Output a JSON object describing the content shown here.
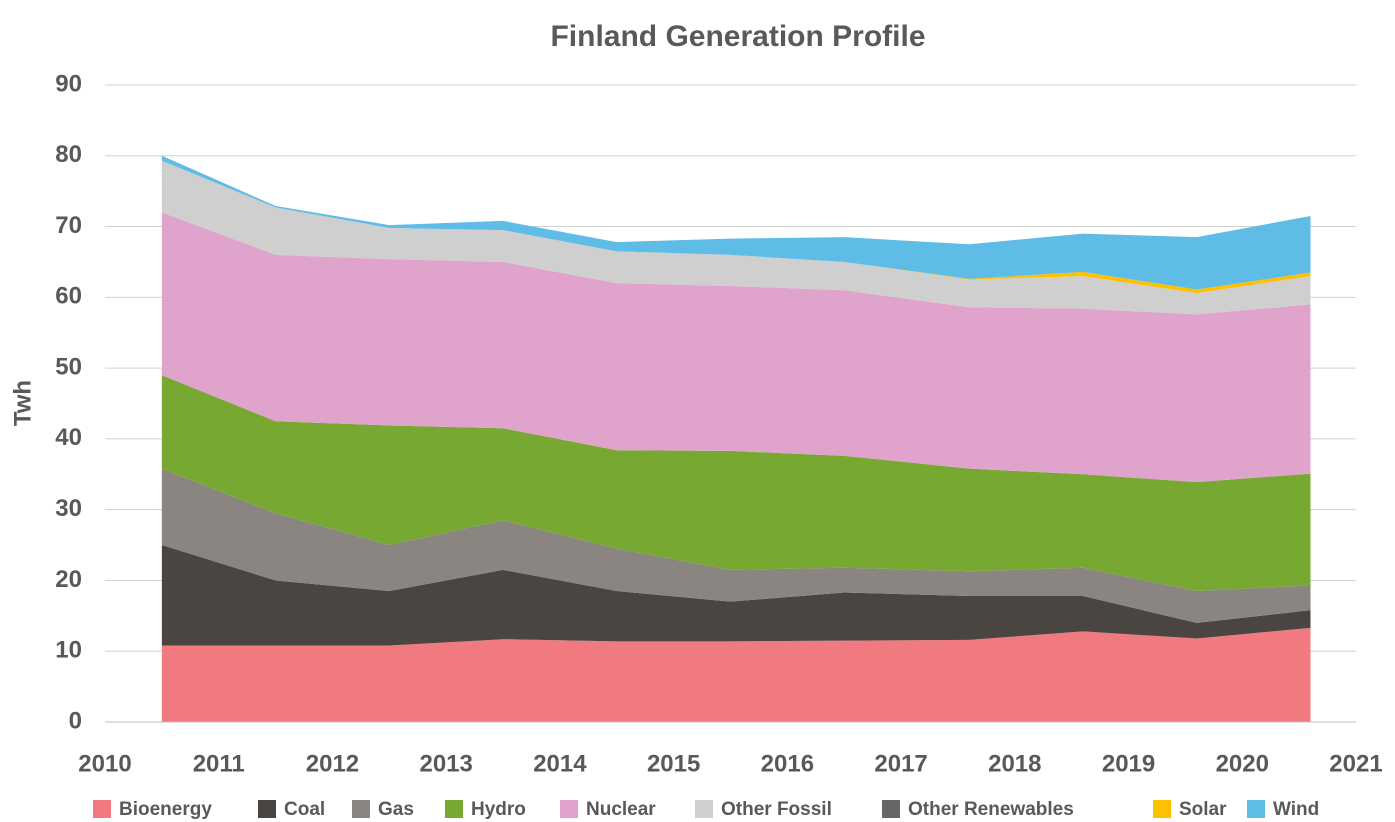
{
  "chart_data": {
    "type": "area",
    "stacked": true,
    "title": "Finland Generation Profile",
    "y_label": "Twh",
    "x": [
      2010.5,
      2011.5,
      2012.5,
      2013.5,
      2014.5,
      2015.5,
      2016.5,
      2017.6,
      2018.6,
      2019.6,
      2020.6
    ],
    "xlim": [
      2010,
      2021
    ],
    "xticks": [
      2010,
      2011,
      2012,
      2013,
      2014,
      2015,
      2016,
      2017,
      2018,
      2019,
      2020,
      2021
    ],
    "ylim": [
      0,
      90
    ],
    "yticks": [
      0,
      10,
      20,
      30,
      40,
      50,
      60,
      70,
      80,
      90
    ],
    "grid": true,
    "legend": "bottom",
    "series": [
      {
        "name": "Bioenergy",
        "color": "#f07a80",
        "values": [
          10.8,
          10.8,
          10.8,
          11.7,
          11.4,
          11.4,
          11.5,
          11.6,
          12.8,
          11.8,
          13.3
        ]
      },
      {
        "name": "Coal",
        "color": "#4a4541",
        "values": [
          14.2,
          9.2,
          7.7,
          9.8,
          7.1,
          5.6,
          6.8,
          6.2,
          5.0,
          2.2,
          2.5
        ]
      },
      {
        "name": "Gas",
        "color": "#8a8581",
        "values": [
          10.8,
          9.5,
          6.5,
          7.0,
          6.0,
          4.5,
          3.5,
          3.5,
          4.0,
          4.5,
          3.5
        ]
      },
      {
        "name": "Hydro",
        "color": "#76a832",
        "values": [
          13.2,
          13.0,
          16.9,
          13.0,
          13.9,
          16.8,
          15.8,
          14.5,
          13.2,
          15.4,
          15.8
        ]
      },
      {
        "name": "Nuclear",
        "color": "#e0a4cc",
        "values": [
          23.0,
          23.5,
          23.5,
          23.5,
          23.6,
          23.3,
          23.4,
          22.8,
          23.4,
          23.7,
          23.9
        ]
      },
      {
        "name": "Other Fossil",
        "color": "#cfcfcf",
        "values": [
          7.3,
          6.7,
          4.4,
          4.5,
          4.5,
          4.4,
          4.0,
          3.9,
          4.6,
          3.0,
          4.0
        ]
      },
      {
        "name": "Other Renewables",
        "color": "#666666",
        "values": [
          0,
          0,
          0,
          0,
          0,
          0,
          0,
          0,
          0,
          0,
          0
        ]
      },
      {
        "name": "Solar",
        "color": "#ffc000",
        "values": [
          0,
          0,
          0,
          0,
          0,
          0,
          0,
          0.1,
          0.6,
          0.5,
          0.5
        ]
      },
      {
        "name": "Wind",
        "color": "#5fbce6",
        "values": [
          0.7,
          0.2,
          0.4,
          1.3,
          1.3,
          2.3,
          3.5,
          4.9,
          5.4,
          7.4,
          8.0
        ]
      }
    ]
  }
}
